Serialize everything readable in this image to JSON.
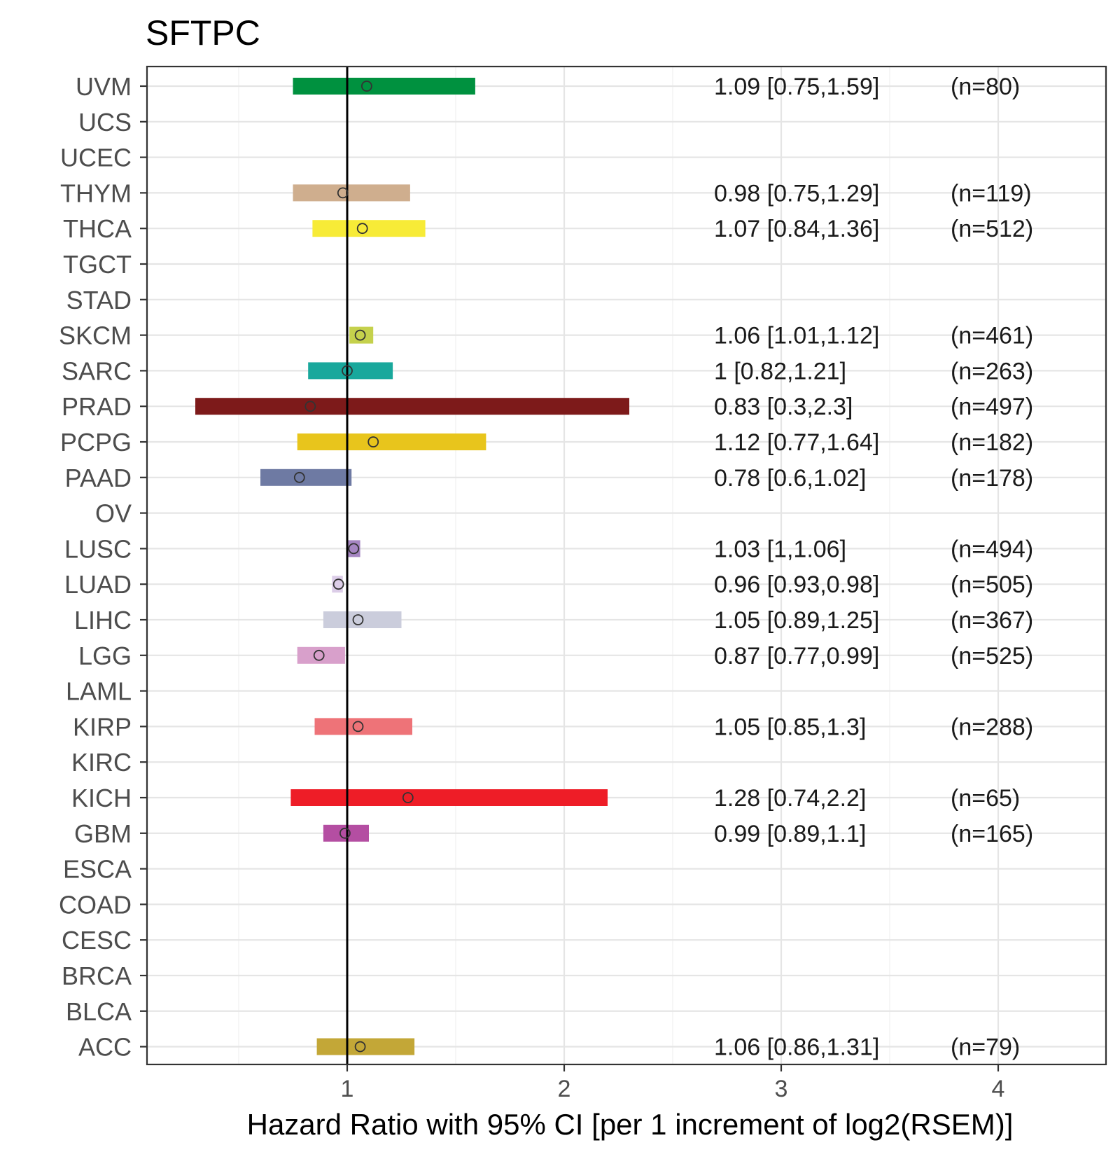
{
  "chart_data": {
    "type": "forest",
    "title": "SFTPC",
    "xlabel": "Hazard Ratio with 95% CI [per 1 increment of log2(RSEM)]",
    "ylabel": "",
    "xlim": [
      0.0,
      4.5
    ],
    "xticks": [
      "1",
      "2",
      "3",
      "4"
    ],
    "xtick_values": [
      1,
      2,
      3,
      4
    ],
    "reference_line": 1,
    "grid": true,
    "categories": [
      "UVM",
      "UCS",
      "UCEC",
      "THYM",
      "THCA",
      "TGCT",
      "STAD",
      "SKCM",
      "SARC",
      "PRAD",
      "PCPG",
      "PAAD",
      "OV",
      "LUSC",
      "LUAD",
      "LIHC",
      "LGG",
      "LAML",
      "KIRP",
      "KIRC",
      "KICH",
      "GBM",
      "ESCA",
      "COAD",
      "CESC",
      "BRCA",
      "BLCA",
      "ACC"
    ],
    "rows": [
      {
        "name": "UVM",
        "hr": 1.09,
        "lower": 0.75,
        "upper": 1.59,
        "label": "1.09 [0.75,1.59]",
        "n": "(n=80)",
        "color": "#00913F"
      },
      {
        "name": "UCS"
      },
      {
        "name": "UCEC"
      },
      {
        "name": "THYM",
        "hr": 0.98,
        "lower": 0.75,
        "upper": 1.29,
        "label": "0.98 [0.75,1.29]",
        "n": "(n=119)",
        "color": "#CFAE8E"
      },
      {
        "name": "THCA",
        "hr": 1.07,
        "lower": 0.84,
        "upper": 1.36,
        "label": "1.07 [0.84,1.36]",
        "n": "(n=512)",
        "color": "#F7EB37"
      },
      {
        "name": "TGCT"
      },
      {
        "name": "STAD"
      },
      {
        "name": "SKCM",
        "hr": 1.06,
        "lower": 1.01,
        "upper": 1.12,
        "label": "1.06 [1.01,1.12]",
        "n": "(n=461)",
        "color": "#C5D14C"
      },
      {
        "name": "SARC",
        "hr": 1.0,
        "lower": 0.82,
        "upper": 1.21,
        "label": "1 [0.82,1.21]",
        "n": "(n=263)",
        "color": "#19A89C"
      },
      {
        "name": "PRAD",
        "hr": 0.83,
        "lower": 0.3,
        "upper": 2.3,
        "label": "0.83 [0.3,2.3]",
        "n": "(n=497)",
        "color": "#7D1A1A"
      },
      {
        "name": "PCPG",
        "hr": 1.12,
        "lower": 0.77,
        "upper": 1.64,
        "label": "1.12 [0.77,1.64]",
        "n": "(n=182)",
        "color": "#E8C51C"
      },
      {
        "name": "PAAD",
        "hr": 0.78,
        "lower": 0.6,
        "upper": 1.02,
        "label": "0.78 [0.6,1.02]",
        "n": "(n=178)",
        "color": "#6E7AA3"
      },
      {
        "name": "OV"
      },
      {
        "name": "LUSC",
        "hr": 1.03,
        "lower": 1.0,
        "upper": 1.06,
        "label": "1.03 [1,1.06]",
        "n": "(n=494)",
        "color": "#A585C2"
      },
      {
        "name": "LUAD",
        "hr": 0.96,
        "lower": 0.93,
        "upper": 0.98,
        "label": "0.96 [0.93,0.98]",
        "n": "(n=505)",
        "color": "#DCCDE8"
      },
      {
        "name": "LIHC",
        "hr": 1.05,
        "lower": 0.89,
        "upper": 1.25,
        "label": "1.05 [0.89,1.25]",
        "n": "(n=367)",
        "color": "#CBCDDC"
      },
      {
        "name": "LGG",
        "hr": 0.87,
        "lower": 0.77,
        "upper": 0.99,
        "label": "0.87 [0.77,0.99]",
        "n": "(n=525)",
        "color": "#D8A0CB"
      },
      {
        "name": "LAML"
      },
      {
        "name": "KIRP",
        "hr": 1.05,
        "lower": 0.85,
        "upper": 1.3,
        "label": "1.05 [0.85,1.3]",
        "n": "(n=288)",
        "color": "#EE7378"
      },
      {
        "name": "KIRC"
      },
      {
        "name": "KICH",
        "hr": 1.28,
        "lower": 0.74,
        "upper": 2.2,
        "label": "1.28 [0.74,2.2]",
        "n": "(n=65)",
        "color": "#EE1D27"
      },
      {
        "name": "GBM",
        "hr": 0.99,
        "lower": 0.89,
        "upper": 1.1,
        "label": "0.99 [0.89,1.1]",
        "n": "(n=165)",
        "color": "#B44EA2"
      },
      {
        "name": "ESCA"
      },
      {
        "name": "COAD"
      },
      {
        "name": "CESC"
      },
      {
        "name": "BRCA"
      },
      {
        "name": "BLCA"
      },
      {
        "name": "ACC",
        "hr": 1.06,
        "lower": 0.86,
        "upper": 1.31,
        "label": "1.06 [0.86,1.31]",
        "n": "(n=79)",
        "color": "#C3A737"
      }
    ]
  }
}
